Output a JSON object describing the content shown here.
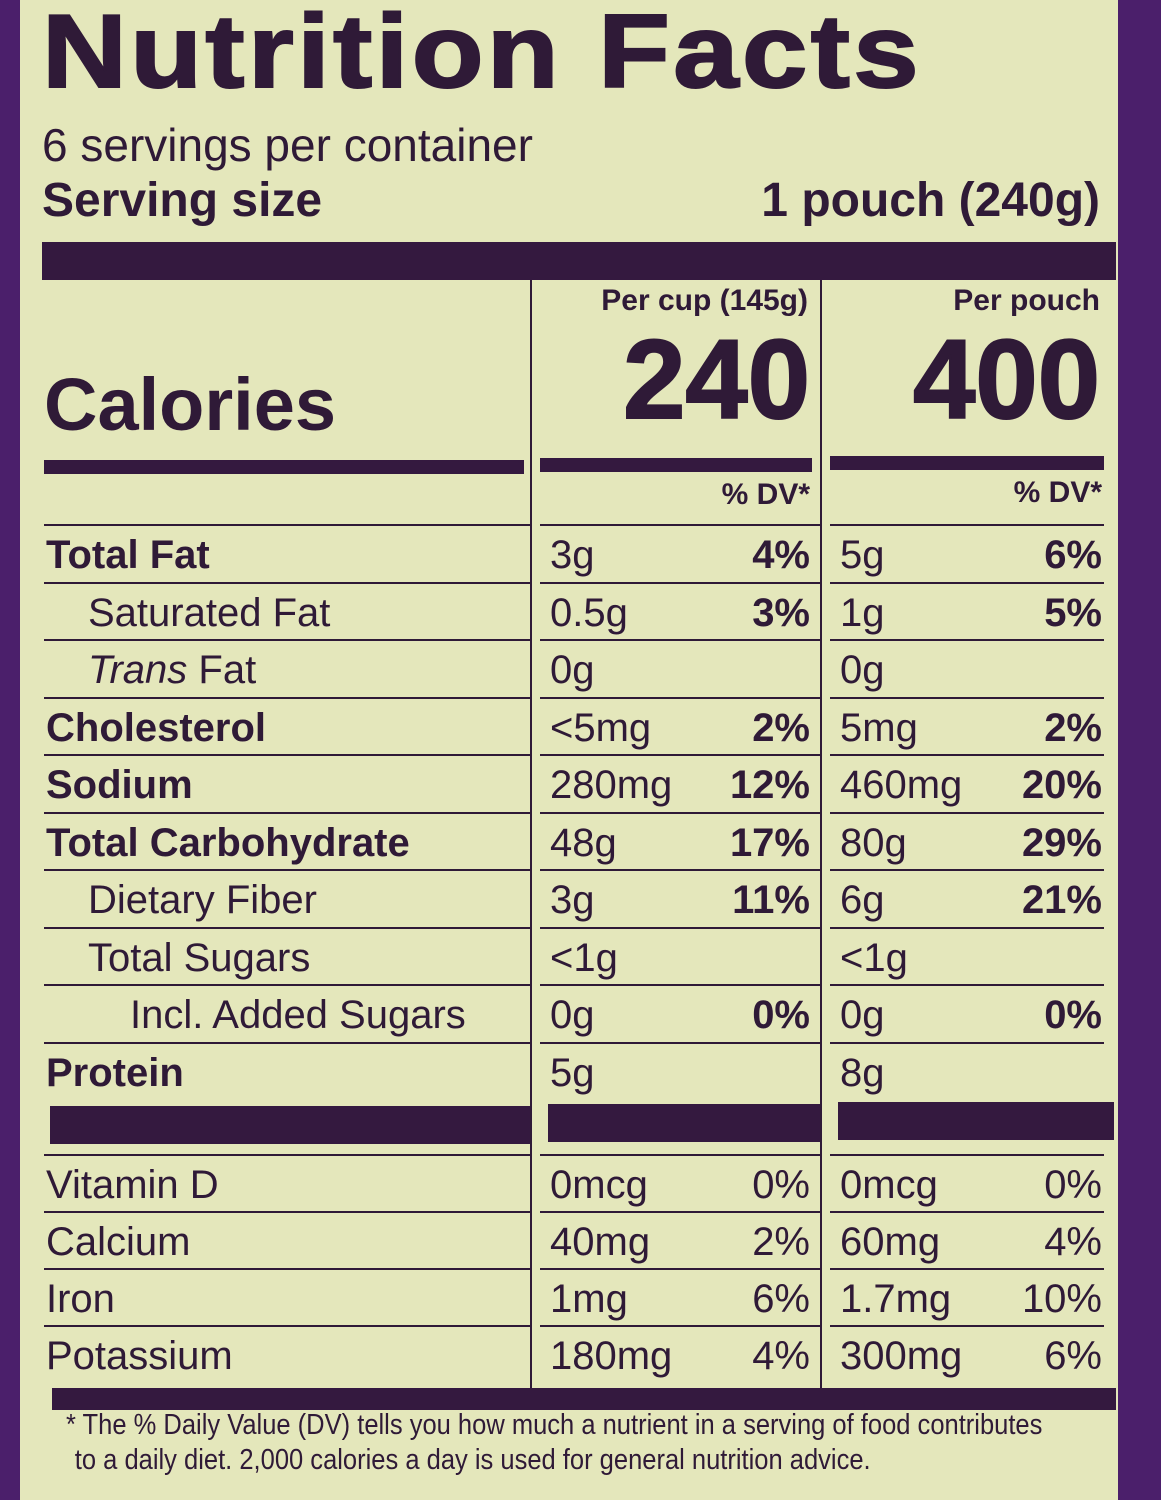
{
  "title": "Nutrition Facts",
  "servings_per_container": "6 servings per container",
  "serving_size": {
    "label": "Serving size",
    "value": "1 pouch (240g)"
  },
  "columns": [
    {
      "header": "Per cup (145g)",
      "calories": "240",
      "dv_header": "% DV*"
    },
    {
      "header": "Per pouch",
      "calories": "400",
      "dv_header": "% DV*"
    }
  ],
  "calories_label": "Calories",
  "nutrients": [
    {
      "name": "Total Fat",
      "bold": true,
      "indent": 0,
      "values": [
        {
          "amount": "3g",
          "dv": "4%"
        },
        {
          "amount": "5g",
          "dv": "6%"
        }
      ]
    },
    {
      "name": "Saturated Fat",
      "bold": false,
      "indent": 1,
      "values": [
        {
          "amount": "0.5g",
          "dv": "3%"
        },
        {
          "amount": "1g",
          "dv": "5%"
        }
      ]
    },
    {
      "name": "Trans",
      "name_suffix": " Fat",
      "italic_prefix": true,
      "bold": false,
      "indent": 1,
      "values": [
        {
          "amount": "0g",
          "dv": ""
        },
        {
          "amount": "0g",
          "dv": ""
        }
      ]
    },
    {
      "name": "Cholesterol",
      "bold": true,
      "indent": 0,
      "values": [
        {
          "amount": "<5mg",
          "dv": "2%"
        },
        {
          "amount": "5mg",
          "dv": "2%"
        }
      ]
    },
    {
      "name": "Sodium",
      "bold": true,
      "indent": 0,
      "values": [
        {
          "amount": "280mg",
          "dv": "12%"
        },
        {
          "amount": "460mg",
          "dv": "20%"
        }
      ]
    },
    {
      "name": "Total Carbohydrate",
      "bold": true,
      "indent": 0,
      "values": [
        {
          "amount": "48g",
          "dv": "17%"
        },
        {
          "amount": "80g",
          "dv": "29%"
        }
      ]
    },
    {
      "name": "Dietary Fiber",
      "bold": false,
      "indent": 1,
      "values": [
        {
          "amount": "3g",
          "dv": "11%"
        },
        {
          "amount": "6g",
          "dv": "21%"
        }
      ]
    },
    {
      "name": "Total Sugars",
      "bold": false,
      "indent": 1,
      "values": [
        {
          "amount": "<1g",
          "dv": ""
        },
        {
          "amount": "<1g",
          "dv": ""
        }
      ]
    },
    {
      "name": "Incl. Added Sugars",
      "bold": false,
      "indent": 2,
      "values": [
        {
          "amount": "0g",
          "dv": "0%"
        },
        {
          "amount": "0g",
          "dv": "0%"
        }
      ]
    },
    {
      "name": "Protein",
      "bold": true,
      "indent": 0,
      "values": [
        {
          "amount": "5g",
          "dv": ""
        },
        {
          "amount": "8g",
          "dv": ""
        }
      ]
    }
  ],
  "vitamins": [
    {
      "name": "Vitamin D",
      "values": [
        {
          "amount": "0mcg",
          "dv": "0%"
        },
        {
          "amount": "0mcg",
          "dv": "0%"
        }
      ]
    },
    {
      "name": "Calcium",
      "values": [
        {
          "amount": "40mg",
          "dv": "2%"
        },
        {
          "amount": "60mg",
          "dv": "4%"
        }
      ]
    },
    {
      "name": "Iron",
      "values": [
        {
          "amount": "1mg",
          "dv": "6%"
        },
        {
          "amount": "1.7mg",
          "dv": "10%"
        }
      ]
    },
    {
      "name": "Potassium",
      "values": [
        {
          "amount": "180mg",
          "dv": "4%"
        },
        {
          "amount": "300mg",
          "dv": "6%"
        }
      ]
    }
  ],
  "footnote": "* The % Daily Value (DV) tells you how much a nutrient in a serving of food contributes to a daily diet. 2,000 calories a day is used for general nutrition advice.",
  "footnote_lines": [
    "* The % Daily Value (DV) tells you how much a nutrient in a serving of food contributes",
    "to a daily diet. 2,000 calories a day is used for general nutrition advice."
  ],
  "colors": {
    "label_bg": "#e4e7bb",
    "ink": "#2f1a37",
    "package_purple": "#4b1f6b"
  }
}
